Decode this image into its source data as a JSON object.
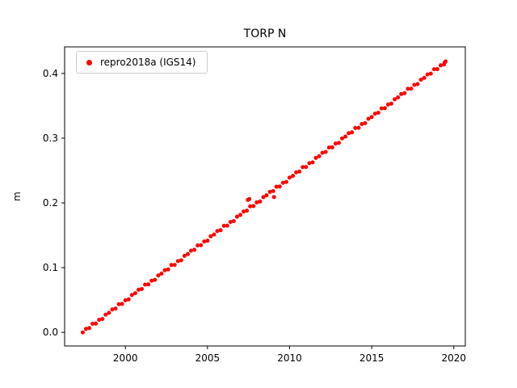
{
  "figure": {
    "background": "#ffffff",
    "accent_color": "#ff0000"
  },
  "chart_data": {
    "type": "scatter",
    "title": "TORP N",
    "xlabel": "",
    "ylabel": "m",
    "xlim": [
      1996.3,
      2020.7
    ],
    "ylim": [
      -0.021,
      0.441
    ],
    "xticks": [
      2000,
      2005,
      2010,
      2015,
      2020
    ],
    "xtick_labels": [
      "2000",
      "2005",
      "2010",
      "2015",
      "2020"
    ],
    "yticks": [
      0.0,
      0.1,
      0.2,
      0.3,
      0.4
    ],
    "ytick_labels": [
      "0.0",
      "0.1",
      "0.2",
      "0.3",
      "0.4"
    ],
    "grid": false,
    "legend_position": "upper left",
    "series": [
      {
        "name": "repro2018a (IGS14)",
        "color": "#ff0000",
        "marker": "point",
        "points": [
          [
            1997.4,
            0.0
          ],
          [
            1997.6,
            0.0053
          ],
          [
            1997.8,
            0.0066
          ],
          [
            1998.0,
            0.0133
          ],
          [
            1998.2,
            0.0136
          ],
          [
            1998.4,
            0.0194
          ],
          [
            1998.6,
            0.0207
          ],
          [
            1998.8,
            0.0275
          ],
          [
            1999.0,
            0.0302
          ],
          [
            1999.2,
            0.0355
          ],
          [
            1999.4,
            0.0368
          ],
          [
            1999.6,
            0.0436
          ],
          [
            1999.8,
            0.0439
          ],
          [
            2000.0,
            0.0496
          ],
          [
            2000.2,
            0.0509
          ],
          [
            2000.4,
            0.0577
          ],
          [
            2000.6,
            0.0605
          ],
          [
            2000.8,
            0.0658
          ],
          [
            2001.0,
            0.067
          ],
          [
            2001.2,
            0.0738
          ],
          [
            2001.4,
            0.0741
          ],
          [
            2001.6,
            0.0799
          ],
          [
            2001.8,
            0.0812
          ],
          [
            2002.0,
            0.0879
          ],
          [
            2002.2,
            0.0907
          ],
          [
            2002.4,
            0.096
          ],
          [
            2002.6,
            0.0973
          ],
          [
            2002.8,
            0.1041
          ],
          [
            2003.0,
            0.1043
          ],
          [
            2003.2,
            0.1101
          ],
          [
            2003.4,
            0.1114
          ],
          [
            2003.6,
            0.1182
          ],
          [
            2003.8,
            0.121
          ],
          [
            2004.0,
            0.1262
          ],
          [
            2004.2,
            0.1275
          ],
          [
            2004.4,
            0.1343
          ],
          [
            2004.6,
            0.1346
          ],
          [
            2004.8,
            0.1404
          ],
          [
            2005.0,
            0.1416
          ],
          [
            2005.2,
            0.1484
          ],
          [
            2005.4,
            0.1512
          ],
          [
            2005.6,
            0.1565
          ],
          [
            2005.8,
            0.1578
          ],
          [
            2006.0,
            0.1645
          ],
          [
            2006.2,
            0.1648
          ],
          [
            2006.4,
            0.1706
          ],
          [
            2006.6,
            0.1719
          ],
          [
            2006.8,
            0.1787
          ],
          [
            2007.0,
            0.1814
          ],
          [
            2007.2,
            0.1867
          ],
          [
            2007.4,
            0.188
          ],
          [
            2007.6,
            0.1948
          ],
          [
            2007.8,
            0.1951
          ],
          [
            2008.0,
            0.2008
          ],
          [
            2008.2,
            0.2021
          ],
          [
            2008.4,
            0.2089
          ],
          [
            2008.6,
            0.2117
          ],
          [
            2008.8,
            0.217
          ],
          [
            2009.0,
            0.2182
          ],
          [
            2009.2,
            0.225
          ],
          [
            2009.4,
            0.2253
          ],
          [
            2009.6,
            0.2311
          ],
          [
            2009.8,
            0.2324
          ],
          [
            2010.0,
            0.2391
          ],
          [
            2010.2,
            0.2419
          ],
          [
            2010.4,
            0.2472
          ],
          [
            2010.6,
            0.2485
          ],
          [
            2010.8,
            0.2553
          ],
          [
            2011.0,
            0.2555
          ],
          [
            2011.2,
            0.2613
          ],
          [
            2011.4,
            0.2626
          ],
          [
            2011.6,
            0.2694
          ],
          [
            2011.8,
            0.2722
          ],
          [
            2012.0,
            0.2774
          ],
          [
            2012.2,
            0.2787
          ],
          [
            2012.4,
            0.2855
          ],
          [
            2012.6,
            0.2858
          ],
          [
            2012.8,
            0.2916
          ],
          [
            2013.0,
            0.2928
          ],
          [
            2013.2,
            0.2996
          ],
          [
            2013.4,
            0.3024
          ],
          [
            2013.6,
            0.3077
          ],
          [
            2013.8,
            0.309
          ],
          [
            2014.0,
            0.3157
          ],
          [
            2014.2,
            0.316
          ],
          [
            2014.4,
            0.3218
          ],
          [
            2014.6,
            0.3231
          ],
          [
            2014.8,
            0.3299
          ],
          [
            2015.0,
            0.3326
          ],
          [
            2015.2,
            0.3379
          ],
          [
            2015.4,
            0.3392
          ],
          [
            2015.6,
            0.346
          ],
          [
            2015.8,
            0.3463
          ],
          [
            2016.0,
            0.352
          ],
          [
            2016.2,
            0.3533
          ],
          [
            2016.4,
            0.3601
          ],
          [
            2016.6,
            0.3629
          ],
          [
            2016.8,
            0.3682
          ],
          [
            2017.0,
            0.3694
          ],
          [
            2017.2,
            0.3762
          ],
          [
            2017.4,
            0.3765
          ],
          [
            2017.6,
            0.3823
          ],
          [
            2017.8,
            0.3836
          ],
          [
            2018.0,
            0.3903
          ],
          [
            2018.2,
            0.3931
          ],
          [
            2018.4,
            0.3984
          ],
          [
            2018.6,
            0.3997
          ],
          [
            2018.8,
            0.4065
          ],
          [
            2019.0,
            0.4067
          ],
          [
            2019.2,
            0.4125
          ],
          [
            2019.4,
            0.4138
          ],
          [
            2007.45,
            0.2045
          ],
          [
            2007.55,
            0.206
          ],
          [
            2009.05,
            0.209
          ],
          [
            2019.45,
            0.417
          ],
          [
            2019.5,
            0.4185
          ]
        ]
      }
    ]
  }
}
